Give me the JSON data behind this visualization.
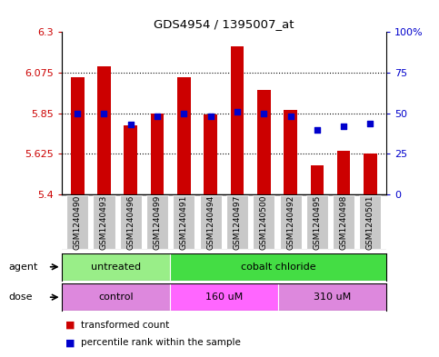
{
  "title": "GDS4954 / 1395007_at",
  "samples": [
    "GSM1240490",
    "GSM1240493",
    "GSM1240496",
    "GSM1240499",
    "GSM1240491",
    "GSM1240494",
    "GSM1240497",
    "GSM1240500",
    "GSM1240492",
    "GSM1240495",
    "GSM1240498",
    "GSM1240501"
  ],
  "bar_values": [
    6.05,
    6.11,
    5.785,
    5.85,
    6.05,
    5.845,
    6.22,
    5.98,
    5.87,
    5.56,
    5.645,
    5.625
  ],
  "dot_values": [
    50,
    50,
    43,
    48,
    50,
    48,
    51,
    50,
    48,
    40,
    42,
    44
  ],
  "ymin": 5.4,
  "ymax": 6.3,
  "y2min": 0,
  "y2max": 100,
  "yticks": [
    5.4,
    5.625,
    5.85,
    6.075,
    6.3
  ],
  "ytick_labels": [
    "5.4",
    "5.625",
    "5.85",
    "6.075",
    "6.3"
  ],
  "y2ticks": [
    0,
    25,
    50,
    75,
    100
  ],
  "y2tick_labels": [
    "0",
    "25",
    "50",
    "75",
    "100%"
  ],
  "hlines": [
    5.625,
    5.85,
    6.075
  ],
  "bar_color": "#CC0000",
  "dot_color": "#0000CC",
  "agent_groups": [
    {
      "label": "untreated",
      "start": 0,
      "end": 4,
      "color": "#99EE88"
    },
    {
      "label": "cobalt chloride",
      "start": 4,
      "end": 12,
      "color": "#44DD44"
    }
  ],
  "dose_groups": [
    {
      "label": "control",
      "start": 0,
      "end": 4,
      "color": "#DD88DD"
    },
    {
      "label": "160 uM",
      "start": 4,
      "end": 8,
      "color": "#FF66FF"
    },
    {
      "label": "310 uM",
      "start": 8,
      "end": 12,
      "color": "#DD88DD"
    }
  ],
  "legend_items": [
    {
      "label": "transformed count",
      "color": "#CC0000"
    },
    {
      "label": "percentile rank within the sample",
      "color": "#0000CC"
    }
  ],
  "agent_label": "agent",
  "dose_label": "dose",
  "tick_bg_color": "#C8C8C8",
  "tick_label_fontsize": 6.5,
  "bar_width": 0.5,
  "dot_size": 18
}
